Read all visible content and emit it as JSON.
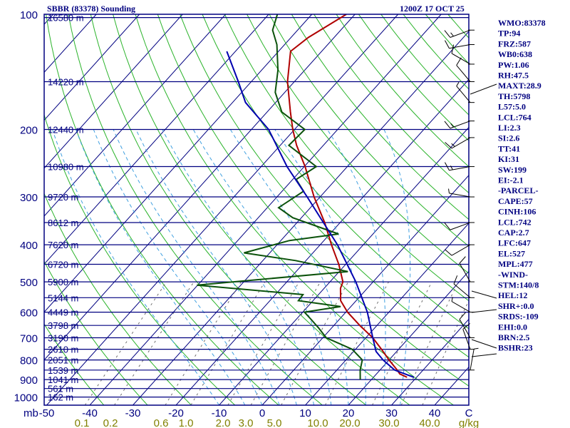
{
  "header": {
    "station": "SBBR (83378) Sounding",
    "time": "1200Z 17 OCT 25"
  },
  "colors": {
    "background": "#ffffff",
    "frame": "#000080",
    "isobar": "#000080",
    "isotherm": "#000080",
    "dry_adiabat": "#2ab32a",
    "moist_adiabat": "#40a0e0",
    "mixing_ratio": "#707070",
    "temperature": "#b00000",
    "dewpoint": "#0b520b",
    "parcel": "#0000b0",
    "label_text": "#000080",
    "mixing_label": "#808000"
  },
  "chart_data": {
    "type": "skew-t",
    "title": "SBBR (83378) Sounding",
    "valid_time": "1200Z 17 OCT 25",
    "pressure_axis": {
      "label_hpa": [
        "100",
        "200",
        "300",
        "400",
        "500",
        "600",
        "700",
        "800",
        "900",
        "1000"
      ],
      "range_hpa": [
        1050,
        100
      ]
    },
    "temperature_axis": {
      "unit_label": "mb",
      "ticks": [
        "-50",
        "-40",
        "-30",
        "-20",
        "-10",
        "0",
        "10",
        "20",
        "30",
        "40"
      ],
      "range_c": [
        -55,
        45
      ],
      "end_label": "C"
    },
    "mixing_ratio_axis": {
      "labels": [
        "0.1",
        "0.2",
        "0.6",
        "1.0",
        "2.0",
        "3.0",
        "5.0",
        "10.0",
        "20.0",
        "30.0",
        "40.0"
      ],
      "unit": "g/kg"
    },
    "height_labels": [
      {
        "p": 102,
        "text": "16580 m"
      },
      {
        "p": 150,
        "text": "14220 m"
      },
      {
        "p": 200,
        "text": "12440 m"
      },
      {
        "p": 250,
        "text": "10980 m"
      },
      {
        "p": 300,
        "text": "9720 m"
      },
      {
        "p": 350,
        "text": "8612 m"
      },
      {
        "p": 400,
        "text": "7620 m"
      },
      {
        "p": 450,
        "text": "6720 m"
      },
      {
        "p": 500,
        "text": "5900 m"
      },
      {
        "p": 550,
        "text": "5144 m"
      },
      {
        "p": 600,
        "text": "4449 m"
      },
      {
        "p": 650,
        "text": "3798 m"
      },
      {
        "p": 700,
        "text": "3190 m"
      },
      {
        "p": 750,
        "text": "2610 m"
      },
      {
        "p": 800,
        "text": "2051 m"
      },
      {
        "p": 850,
        "text": "1539 m"
      },
      {
        "p": 900,
        "text": "1041 m"
      },
      {
        "p": 950,
        "text": "561 m"
      },
      {
        "p": 1000,
        "text": "162 m"
      }
    ],
    "temperature_profile": [
      {
        "p": 888,
        "t": 27.8
      },
      {
        "p": 870,
        "t": 25.4
      },
      {
        "p": 850,
        "t": 24.0
      },
      {
        "p": 800,
        "t": 20.0
      },
      {
        "p": 750,
        "t": 16.0
      },
      {
        "p": 700,
        "t": 11.6
      },
      {
        "p": 650,
        "t": 6.0
      },
      {
        "p": 600,
        "t": 0.4
      },
      {
        "p": 560,
        "t": -3.6
      },
      {
        "p": 520,
        "t": -6.2
      },
      {
        "p": 500,
        "t": -7.0
      },
      {
        "p": 450,
        "t": -11.6
      },
      {
        "p": 400,
        "t": -17.4
      },
      {
        "p": 350,
        "t": -23.6
      },
      {
        "p": 300,
        "t": -31.4
      },
      {
        "p": 250,
        "t": -39.8
      },
      {
        "p": 220,
        "t": -46.2
      },
      {
        "p": 200,
        "t": -50.4
      },
      {
        "p": 180,
        "t": -54.6
      },
      {
        "p": 150,
        "t": -61.6
      },
      {
        "p": 125,
        "t": -67.2
      },
      {
        "p": 115,
        "t": -66.0
      },
      {
        "p": 100,
        "t": -62.0
      }
    ],
    "dewpoint_profile": [
      {
        "p": 900,
        "td": 17.4
      },
      {
        "p": 850,
        "td": 15.4
      },
      {
        "p": 800,
        "td": 13.8
      },
      {
        "p": 750,
        "td": 9.2
      },
      {
        "p": 700,
        "td": 0.8
      },
      {
        "p": 660,
        "td": -3.0
      },
      {
        "p": 630,
        "td": -6.2
      },
      {
        "p": 600,
        "td": -9.6
      },
      {
        "p": 580,
        "td": -2.4
      },
      {
        "p": 560,
        "td": -13.4
      },
      {
        "p": 540,
        "td": -13.6
      },
      {
        "p": 510,
        "td": -40.2
      },
      {
        "p": 470,
        "td": -8.0
      },
      {
        "p": 440,
        "td": -22.4
      },
      {
        "p": 420,
        "td": -36.0
      },
      {
        "p": 390,
        "td": -28.0
      },
      {
        "p": 375,
        "td": -18.0
      },
      {
        "p": 340,
        "td": -32.0
      },
      {
        "p": 320,
        "td": -37.4
      },
      {
        "p": 290,
        "td": -35.0
      },
      {
        "p": 270,
        "td": -39.2
      },
      {
        "p": 250,
        "td": -37.2
      },
      {
        "p": 220,
        "td": -48.0
      },
      {
        "p": 200,
        "td": -47.6
      },
      {
        "p": 180,
        "td": -56.6
      },
      {
        "p": 160,
        "td": -62.2
      },
      {
        "p": 140,
        "td": -66.2
      },
      {
        "p": 120,
        "td": -71.8
      },
      {
        "p": 110,
        "td": -75.8
      },
      {
        "p": 100,
        "td": -78.0
      }
    ],
    "parcel_profile": [
      {
        "p": 888,
        "t": 29.4
      },
      {
        "p": 850,
        "t": 23.4
      },
      {
        "p": 800,
        "t": 18.6
      },
      {
        "p": 760,
        "t": 15.2
      },
      {
        "p": 700,
        "t": 11.6
      },
      {
        "p": 600,
        "t": 5.0
      },
      {
        "p": 500,
        "t": -4.0
      },
      {
        "p": 400,
        "t": -16.0
      },
      {
        "p": 300,
        "t": -33.0
      },
      {
        "p": 250,
        "t": -44.0
      },
      {
        "p": 200,
        "t": -56.0
      },
      {
        "p": 170,
        "t": -67.0
      },
      {
        "p": 150,
        "t": -73.0
      },
      {
        "p": 125,
        "t": -82.0
      }
    ],
    "wind_profile": [
      {
        "p": 110,
        "dir": 250,
        "kt": 15
      },
      {
        "p": 120,
        "dir": 260,
        "kt": 10
      },
      {
        "p": 135,
        "dir": 300,
        "kt": 10
      },
      {
        "p": 150,
        "dir": 320,
        "kt": 10
      },
      {
        "p": 170,
        "dir": 320,
        "kt": 5
      },
      {
        "p": 190,
        "dir": 250,
        "kt": 15
      },
      {
        "p": 210,
        "dir": 240,
        "kt": 15
      },
      {
        "p": 250,
        "dir": 260,
        "kt": 15
      },
      {
        "p": 300,
        "dir": 280,
        "kt": 5
      },
      {
        "p": 350,
        "dir": 250,
        "kt": 10
      },
      {
        "p": 400,
        "dir": 240,
        "kt": 10
      },
      {
        "p": 500,
        "dir": 330,
        "kt": 10
      },
      {
        "p": 550,
        "dir": 310,
        "kt": 10
      },
      {
        "p": 600,
        "dir": 300,
        "kt": 5
      },
      {
        "p": 700,
        "dir": 330,
        "kt": 10
      },
      {
        "p": 750,
        "dir": 340,
        "kt": 10
      },
      {
        "p": 850,
        "dir": 10,
        "kt": 5
      }
    ]
  },
  "indices": [
    "WMO:83378",
    "TP:94",
    "FRZ:587",
    "WB0:638",
    "PW:1.06",
    "RH:47.5",
    "MAXT:28.9",
    "TH:5798",
    "L57:5.0",
    "LCL:764",
    "LI:2.3",
    "SI:2.6",
    "TT:41",
    "KI:31",
    "SW:199",
    "EI:-2.1",
    "-PARCEL-",
    "CAPE:57",
    "CINH:106",
    "LCL:742",
    "CAP:2.7",
    "LFC:647",
    "EL:527",
    "MPL:477",
    "-WIND-",
    "STM:140/8",
    "HEL:12",
    "SHR+:0.0",
    "SRDS:-109",
    "EHI:0.0",
    "BRN:2.5",
    "BSHR:23"
  ]
}
